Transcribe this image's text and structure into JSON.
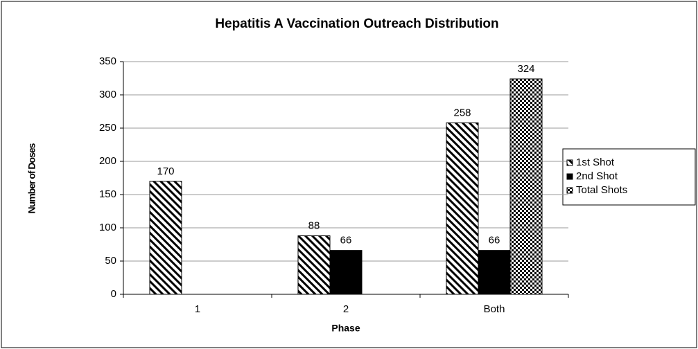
{
  "chart_data": {
    "type": "bar",
    "title": "Hepatitis A Vaccination Outreach Distribution",
    "x_label": "Phase",
    "y_label": "Number of Doses",
    "categories": [
      "1",
      "2",
      "Both"
    ],
    "series": [
      {
        "name": "1st Shot",
        "color": "#000000",
        "pattern": "diagonal",
        "values": [
          170,
          88,
          258
        ]
      },
      {
        "name": "2nd Shot",
        "color": "#000000",
        "pattern": "solid",
        "values": [
          null,
          66,
          66
        ]
      },
      {
        "name": "Total Shots",
        "color": "#000000",
        "pattern": "checker",
        "values": [
          null,
          null,
          324
        ]
      }
    ],
    "ylim": [
      0,
      350
    ],
    "yticks": [
      0,
      50,
      100,
      150,
      200,
      250,
      300,
      350
    ],
    "grid": true,
    "legend": "right"
  }
}
